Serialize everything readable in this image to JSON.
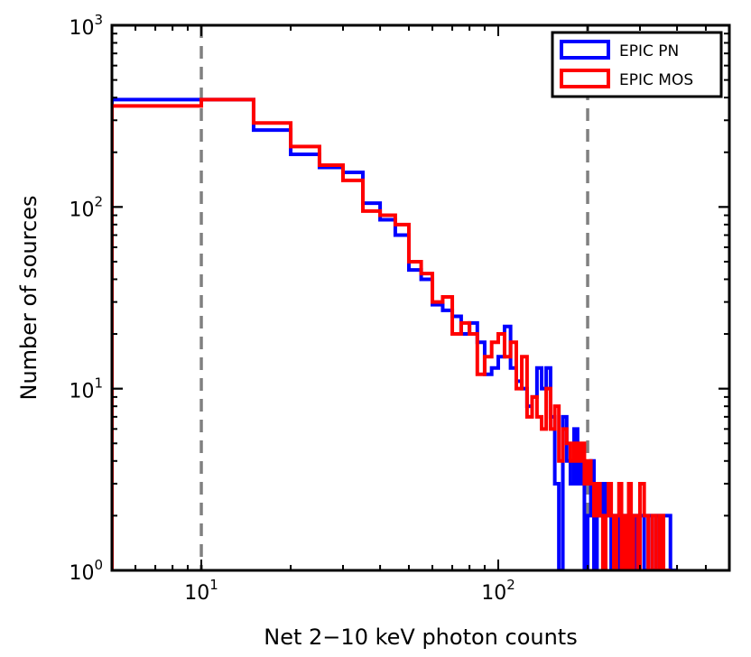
{
  "chart_data": {
    "type": "histogram",
    "xscale": "log",
    "yscale": "log",
    "xlabel": "Net 2−10 keV photon counts",
    "ylabel": "Number of sources",
    "xlim": [
      5,
      600
    ],
    "ylim": [
      1,
      1000
    ],
    "xticks": [
      {
        "base": "10",
        "exp": "1",
        "value": 10
      },
      {
        "base": "10",
        "exp": "2",
        "value": 100
      }
    ],
    "yticks": [
      {
        "base": "10",
        "exp": "0",
        "value": 1
      },
      {
        "base": "10",
        "exp": "1",
        "value": 10
      },
      {
        "base": "10",
        "exp": "2",
        "value": 100
      },
      {
        "base": "10",
        "exp": "3",
        "value": 1000
      }
    ],
    "reference_lines": [
      {
        "x": 10,
        "color": "#808080",
        "style": "dashed"
      },
      {
        "x": 200,
        "color": "#808080",
        "style": "dashed"
      }
    ],
    "legend": {
      "position": "top-right",
      "entries": [
        {
          "label": "EPIC PN",
          "color": "#0000ff"
        },
        {
          "label": "EPIC MOS",
          "color": "#ff0000"
        }
      ]
    },
    "series": [
      {
        "name": "EPIC PN",
        "color": "#0000ff",
        "bins": [
          [
            5,
            10,
            390
          ],
          [
            10,
            15,
            390
          ],
          [
            15,
            20,
            265
          ],
          [
            20,
            25,
            195
          ],
          [
            25,
            30,
            165
          ],
          [
            30,
            35,
            155
          ],
          [
            35,
            40,
            105
          ],
          [
            40,
            45,
            85
          ],
          [
            45,
            50,
            70
          ],
          [
            50,
            55,
            45
          ],
          [
            55,
            60,
            40
          ],
          [
            60,
            65,
            29
          ],
          [
            65,
            70,
            27
          ],
          [
            70,
            75,
            25
          ],
          [
            75,
            80,
            20
          ],
          [
            80,
            85,
            23
          ],
          [
            85,
            90,
            18
          ],
          [
            90,
            95,
            12
          ],
          [
            95,
            100,
            13
          ],
          [
            100,
            105,
            15
          ],
          [
            105,
            110,
            22
          ],
          [
            110,
            115,
            13
          ],
          [
            115,
            120,
            11
          ],
          [
            120,
            125,
            10
          ],
          [
            125,
            130,
            8
          ],
          [
            130,
            135,
            9
          ],
          [
            135,
            140,
            13
          ],
          [
            140,
            145,
            10
          ],
          [
            145,
            150,
            13
          ],
          [
            150,
            155,
            7
          ],
          [
            155,
            160,
            3
          ],
          [
            160,
            165,
            1
          ],
          [
            165,
            170,
            7
          ],
          [
            170,
            175,
            4
          ],
          [
            175,
            180,
            3
          ],
          [
            180,
            185,
            6
          ],
          [
            185,
            190,
            3
          ],
          [
            190,
            195,
            4
          ],
          [
            195,
            200,
            1
          ],
          [
            200,
            205,
            2
          ],
          [
            205,
            210,
            4
          ],
          [
            210,
            215,
            1
          ],
          [
            215,
            220,
            3
          ],
          [
            220,
            225,
            2
          ],
          [
            225,
            230,
            3
          ],
          [
            230,
            235,
            2
          ],
          [
            235,
            240,
            2
          ],
          [
            240,
            245,
            1
          ],
          [
            245,
            250,
            2
          ],
          [
            250,
            255,
            1
          ],
          [
            255,
            260,
            2
          ],
          [
            260,
            265,
            1
          ],
          [
            265,
            270,
            2
          ],
          [
            270,
            275,
            1
          ],
          [
            275,
            280,
            2
          ],
          [
            280,
            285,
            1
          ],
          [
            285,
            290,
            2
          ],
          [
            290,
            295,
            1
          ],
          [
            295,
            300,
            2
          ],
          [
            300,
            310,
            2
          ],
          [
            310,
            320,
            1
          ],
          [
            320,
            330,
            2
          ],
          [
            330,
            340,
            1
          ],
          [
            340,
            350,
            2
          ],
          [
            350,
            360,
            1
          ],
          [
            360,
            370,
            2
          ],
          [
            370,
            380,
            2
          ],
          [
            380,
            400,
            1
          ]
        ]
      },
      {
        "name": "EPIC MOS",
        "color": "#ff0000",
        "bins": [
          [
            5,
            10,
            360
          ],
          [
            10,
            15,
            390
          ],
          [
            15,
            20,
            290
          ],
          [
            20,
            25,
            215
          ],
          [
            25,
            30,
            170
          ],
          [
            30,
            35,
            140
          ],
          [
            35,
            40,
            95
          ],
          [
            40,
            45,
            90
          ],
          [
            45,
            50,
            80
          ],
          [
            50,
            55,
            50
          ],
          [
            55,
            60,
            43
          ],
          [
            60,
            65,
            30
          ],
          [
            65,
            70,
            32
          ],
          [
            70,
            75,
            20
          ],
          [
            75,
            80,
            23
          ],
          [
            80,
            85,
            20
          ],
          [
            85,
            90,
            12
          ],
          [
            90,
            95,
            15
          ],
          [
            95,
            100,
            18
          ],
          [
            100,
            105,
            20
          ],
          [
            105,
            110,
            15
          ],
          [
            110,
            115,
            18
          ],
          [
            115,
            120,
            10
          ],
          [
            120,
            125,
            15
          ],
          [
            125,
            130,
            7
          ],
          [
            130,
            135,
            9
          ],
          [
            135,
            140,
            7
          ],
          [
            140,
            145,
            6
          ],
          [
            145,
            150,
            10
          ],
          [
            150,
            155,
            6
          ],
          [
            155,
            160,
            8
          ],
          [
            160,
            165,
            4
          ],
          [
            165,
            170,
            6
          ],
          [
            170,
            175,
            5
          ],
          [
            175,
            180,
            4
          ],
          [
            180,
            185,
            5
          ],
          [
            185,
            190,
            4
          ],
          [
            190,
            195,
            5
          ],
          [
            195,
            200,
            3
          ],
          [
            200,
            205,
            4
          ],
          [
            205,
            210,
            3
          ],
          [
            210,
            215,
            2
          ],
          [
            215,
            220,
            3
          ],
          [
            220,
            225,
            2
          ],
          [
            225,
            230,
            1
          ],
          [
            230,
            235,
            2
          ],
          [
            235,
            240,
            3
          ],
          [
            240,
            245,
            2
          ],
          [
            245,
            250,
            1
          ],
          [
            250,
            255,
            2
          ],
          [
            255,
            260,
            3
          ],
          [
            260,
            265,
            1
          ],
          [
            265,
            270,
            2
          ],
          [
            270,
            275,
            1
          ],
          [
            275,
            280,
            3
          ],
          [
            280,
            285,
            1
          ],
          [
            285,
            290,
            2
          ],
          [
            290,
            295,
            2
          ],
          [
            295,
            300,
            1
          ],
          [
            300,
            310,
            3
          ],
          [
            310,
            320,
            2
          ],
          [
            320,
            330,
            1
          ],
          [
            330,
            340,
            2
          ],
          [
            340,
            350,
            1
          ],
          [
            350,
            360,
            2
          ],
          [
            360,
            370,
            1
          ],
          [
            370,
            380,
            1
          ]
        ]
      }
    ]
  }
}
